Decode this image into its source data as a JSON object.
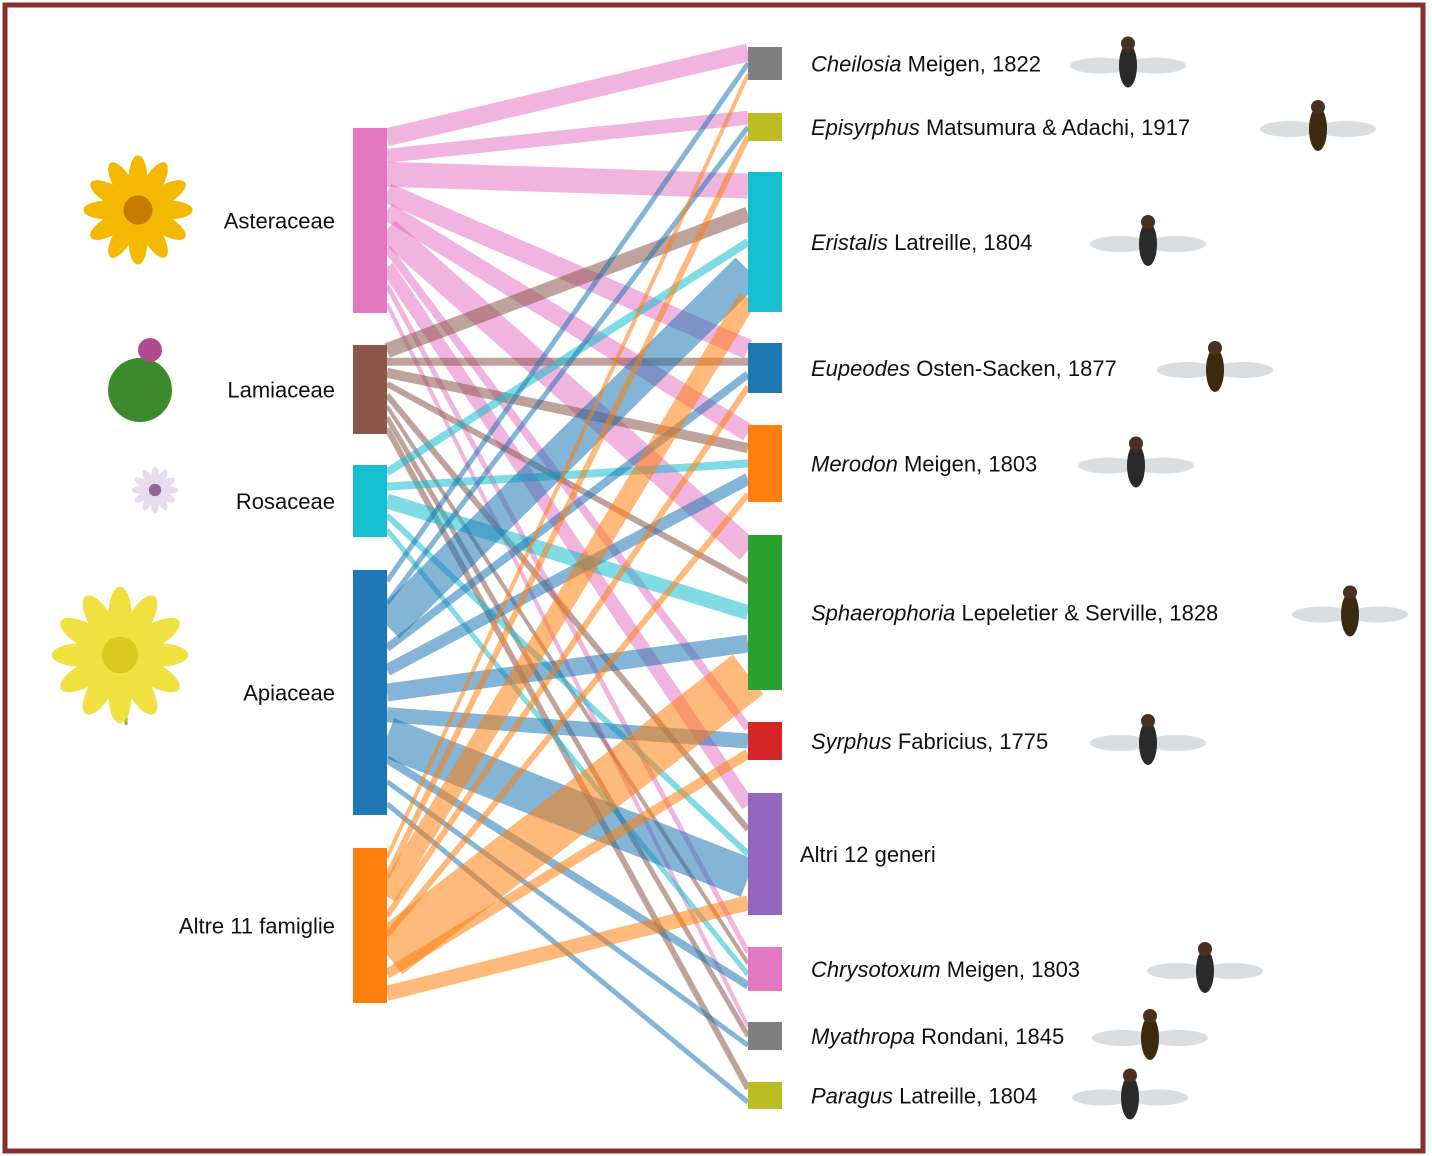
{
  "left_nodes": [
    {
      "label": "Asteraceae"
    },
    {
      "label": "Lamiaceae"
    },
    {
      "label": "Rosaceae"
    },
    {
      "label": "Apiaceae"
    },
    {
      "label": "Altre 11 famiglie"
    }
  ],
  "right_nodes": [
    {
      "genus": "Cheilosia",
      "authority": "Meigen, 1822"
    },
    {
      "genus": "Episyrphus",
      "authority": "Matsumura & Adachi, 1917"
    },
    {
      "genus": "Eristalis",
      "authority": "Latreille, 1804"
    },
    {
      "genus": "Eupeodes",
      "authority": "Osten-Sacken, 1877"
    },
    {
      "genus": "Merodon",
      "authority": "Meigen, 1803"
    },
    {
      "genus": "Sphaerophoria",
      "authority": "Lepeletier & Serville, 1828"
    },
    {
      "genus": "Syrphus",
      "authority": "Fabricius, 1775"
    },
    {
      "label": "Altri 12 generi"
    },
    {
      "genus": "Chrysotoxum",
      "authority": "Meigen, 1803"
    },
    {
      "genus": "Myathropa",
      "authority": "Rondani, 1845"
    },
    {
      "genus": "Paragus",
      "authority": "Latreille, 1804"
    }
  ]
}
